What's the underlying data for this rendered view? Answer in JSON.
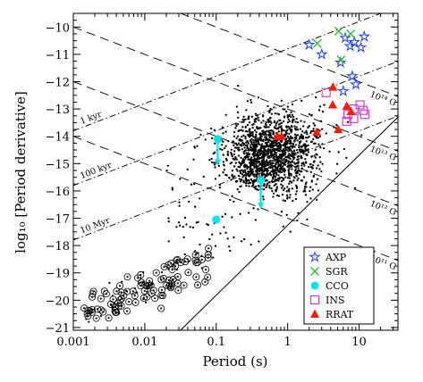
{
  "chart_data": {
    "type": "scatter",
    "xlabel": "Period (s)",
    "ylabel": "log₁₀ [Period derivative]",
    "x_scale": "log",
    "xlim": [
      0.001,
      35
    ],
    "ylim": [
      -21.1,
      -9.5
    ],
    "x_ticks": [
      {
        "value": 0.001,
        "label": "0.001"
      },
      {
        "value": 0.01,
        "label": "0.01"
      },
      {
        "value": 0.1,
        "label": "0.1"
      },
      {
        "value": 1,
        "label": "1"
      },
      {
        "value": 10,
        "label": "10"
      }
    ],
    "y_ticks": [
      {
        "value": -10,
        "label": "−10"
      },
      {
        "value": -11,
        "label": "−11"
      },
      {
        "value": -12,
        "label": "−12"
      },
      {
        "value": -13,
        "label": "−13"
      },
      {
        "value": -14,
        "label": "−14"
      },
      {
        "value": -15,
        "label": "−15"
      },
      {
        "value": -16,
        "label": "−16"
      },
      {
        "value": -17,
        "label": "−17"
      },
      {
        "value": -18,
        "label": "−18"
      },
      {
        "value": -19,
        "label": "−19"
      },
      {
        "value": -20,
        "label": "−20"
      },
      {
        "value": -21,
        "label": "−21"
      }
    ],
    "reference_lines": [
      {
        "kind": "characteristic_age",
        "label": "1 kyr",
        "label_x": 0.0013
      },
      {
        "kind": "characteristic_age",
        "label": "100 kyr",
        "label_x": 0.0013
      },
      {
        "kind": "characteristic_age",
        "label": "10 Myr",
        "label_x": 0.0013
      },
      {
        "kind": "magnetic_field",
        "label": "10¹⁴ G",
        "label_x": 21
      },
      {
        "kind": "magnetic_field",
        "label": "10¹³ G",
        "label_x": 21
      },
      {
        "kind": "magnetic_field",
        "label": "10¹² G",
        "label_x": 21
      },
      {
        "kind": "magnetic_field",
        "label": "10¹¹ G",
        "label_x": 21
      }
    ],
    "series": [
      {
        "name": "AXP",
        "marker": "star",
        "color": "#1a3aff",
        "points": [
          [
            2.0,
            -10.65
          ],
          [
            3.0,
            -11.0
          ],
          [
            6.4,
            -10.4
          ],
          [
            7.5,
            -10.7
          ],
          [
            8.6,
            -10.55
          ],
          [
            10.6,
            -10.75
          ],
          [
            11.8,
            -10.35
          ],
          [
            5.5,
            -11.3
          ],
          [
            8.0,
            -11.8
          ],
          [
            6.0,
            -12.35
          ],
          [
            9.0,
            -12.1
          ]
        ]
      },
      {
        "name": "SGR",
        "marker": "x",
        "color": "#22bb22",
        "points": [
          [
            2.6,
            -10.6
          ],
          [
            5.2,
            -10.15
          ],
          [
            7.6,
            -10.25
          ],
          [
            5.6,
            -11.2
          ]
        ]
      },
      {
        "name": "CCO",
        "marker": "circle",
        "color": "#00e5ee",
        "points": [
          [
            0.105,
            -14.1
          ],
          [
            0.42,
            -15.6
          ],
          [
            0.1,
            -17.05
          ]
        ],
        "upper_limit_arrows": [
          [
            0.105,
            -14.1,
            -15.0
          ],
          [
            0.42,
            -15.6,
            -16.6
          ]
        ]
      },
      {
        "name": "INS",
        "marker": "open-square",
        "color": "#d030d0",
        "points": [
          [
            3.45,
            -12.4
          ],
          [
            7.0,
            -13.2
          ],
          [
            8.4,
            -13.0
          ],
          [
            10.3,
            -12.85
          ],
          [
            11.4,
            -13.05
          ],
          [
            12.0,
            -13.2
          ],
          [
            8.4,
            -13.35
          ],
          [
            6.7,
            -13.45
          ]
        ]
      },
      {
        "name": "RRAT",
        "marker": "triangle",
        "color": "#ff1a00",
        "points": [
          [
            4.3,
            -12.2
          ],
          [
            4.26,
            -12.85
          ],
          [
            6.7,
            -12.9
          ],
          [
            7.7,
            -13.1
          ],
          [
            5.1,
            -13.75
          ],
          [
            2.55,
            -13.85
          ],
          [
            0.72,
            -14.0
          ],
          [
            0.82,
            -14.0
          ]
        ]
      }
    ],
    "legend": {
      "placement": "bottom-right",
      "entries": [
        "AXP",
        "SGR",
        "CCO",
        "INS",
        "RRAT"
      ]
    },
    "grid": false
  }
}
